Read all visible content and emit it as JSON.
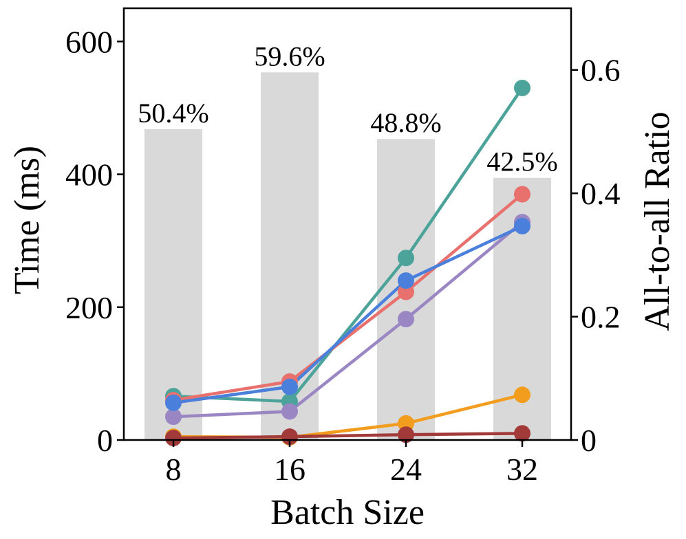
{
  "chart_data": {
    "type": "bar+line",
    "xlabel": "Batch Size",
    "ylabel_left": "Time (ms)",
    "ylabel_right": "All-to-all Ratio",
    "categories": [
      "8",
      "16",
      "24",
      "32"
    ],
    "ylim_left": [
      0,
      650
    ],
    "ylim_right": [
      0,
      0.7
    ],
    "yticks_left": [
      {
        "value": 0,
        "label": "0"
      },
      {
        "value": 200,
        "label": "200"
      },
      {
        "value": 400,
        "label": "400"
      },
      {
        "value": 600,
        "label": "600"
      }
    ],
    "yticks_right": [
      {
        "value": 0,
        "label": "0"
      },
      {
        "value": 0.2,
        "label": "0.2"
      },
      {
        "value": 0.4,
        "label": "0.4"
      },
      {
        "value": 0.6,
        "label": "0.6"
      }
    ],
    "bars": {
      "axis": "right",
      "color": "#d9d9d9",
      "values": [
        0.504,
        0.596,
        0.488,
        0.425
      ],
      "labels": [
        "50.4%",
        "59.6%",
        "48.8%",
        "42.5%"
      ]
    },
    "series": [
      {
        "name": "series-teal",
        "color": "#4ba39a",
        "values": [
          66,
          58,
          274,
          530
        ]
      },
      {
        "name": "series-salmon",
        "color": "#e8716e",
        "values": [
          60,
          88,
          223,
          370
        ]
      },
      {
        "name": "series-purple",
        "color": "#9b86c4",
        "values": [
          35,
          43,
          182,
          328
        ]
      },
      {
        "name": "series-blue",
        "color": "#4a7fdb",
        "values": [
          56,
          80,
          240,
          322
        ]
      },
      {
        "name": "series-orange",
        "color": "#f29d1e",
        "values": [
          5,
          4,
          25,
          68
        ]
      },
      {
        "name": "series-darkred",
        "color": "#a23a3a",
        "values": [
          3,
          5,
          8,
          10
        ]
      }
    ]
  }
}
